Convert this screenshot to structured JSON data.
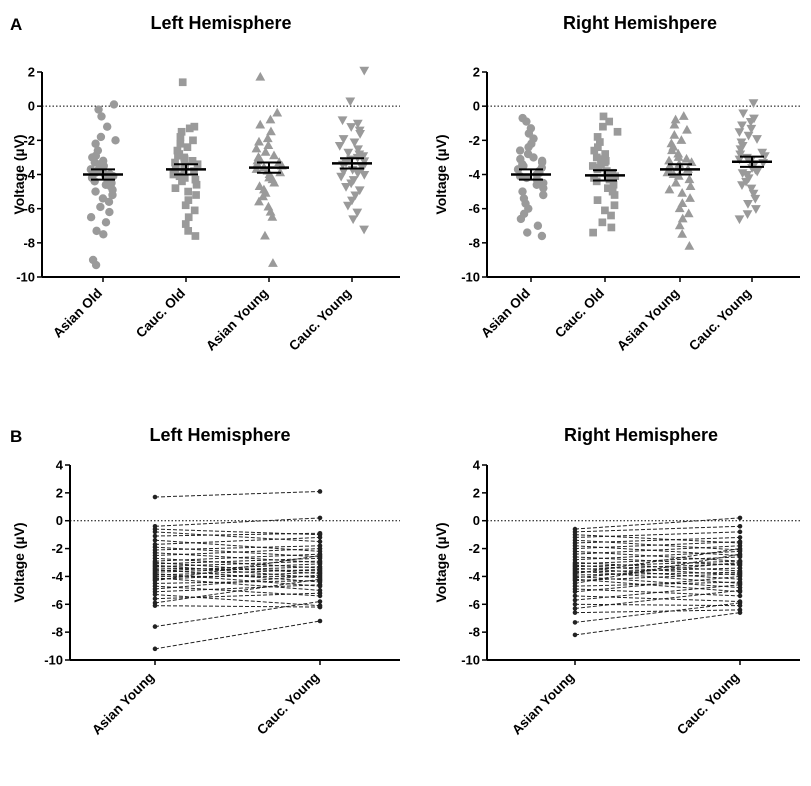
{
  "colors": {
    "axis": "#000000",
    "points": "#9a9a9a",
    "paired": "#222222"
  },
  "panel_labels": [
    "A",
    "B"
  ],
  "chart_data": [
    {
      "type": "scatter",
      "panel": "A",
      "title": "Left Hemisphere",
      "ylabel": "Voltage (µV)",
      "xlabel": "",
      "ylim": [
        -10,
        2
      ],
      "yticks": [
        2,
        0,
        -2,
        -4,
        -6,
        -8,
        -10
      ],
      "reference_line": 0,
      "grid": false,
      "categories": [
        "Asian Old",
        "Cauc. Old",
        "Asian Young",
        "Cauc. Young"
      ],
      "markers": [
        "circle",
        "square",
        "triangle-up",
        "triangle-down"
      ],
      "summary": [
        {
          "mean": -4.0,
          "sem": 0.3
        },
        {
          "mean": -3.7,
          "sem": 0.3
        },
        {
          "mean": -3.6,
          "sem": 0.3
        },
        {
          "mean": -3.35,
          "sem": 0.3
        }
      ],
      "series": [
        {
          "values": [
            0.1,
            -0.2,
            -0.6,
            -1.2,
            -1.8,
            -2.0,
            -2.2,
            -2.6,
            -2.9,
            -3.0,
            -3.2,
            -3.3,
            -3.4,
            -3.5,
            -3.6,
            -3.7,
            -3.7,
            -3.8,
            -3.9,
            -4.0,
            -4.0,
            -4.1,
            -4.1,
            -4.2,
            -4.3,
            -4.4,
            -4.5,
            -4.6,
            -4.7,
            -4.9,
            -5.0,
            -5.2,
            -5.4,
            -5.6,
            -5.9,
            -6.2,
            -6.5,
            -6.8,
            -7.3,
            -7.5,
            -9.0,
            -9.3
          ]
        },
        {
          "values": [
            1.4,
            -1.2,
            -1.3,
            -1.5,
            -1.8,
            -2.0,
            -2.2,
            -2.4,
            -2.6,
            -2.8,
            -2.9,
            -3.0,
            -3.1,
            -3.2,
            -3.3,
            -3.4,
            -3.5,
            -3.6,
            -3.7,
            -3.8,
            -3.9,
            -4.0,
            -4.1,
            -4.2,
            -4.3,
            -4.4,
            -4.6,
            -4.8,
            -5.0,
            -5.2,
            -5.5,
            -5.8,
            -6.1,
            -6.5,
            -6.9,
            -7.3,
            -7.6
          ]
        },
        {
          "values": [
            1.7,
            -0.4,
            -0.8,
            -1.1,
            -1.5,
            -1.9,
            -2.1,
            -2.3,
            -2.5,
            -2.7,
            -2.9,
            -3.0,
            -3.1,
            -3.2,
            -3.3,
            -3.4,
            -3.5,
            -3.6,
            -3.7,
            -3.8,
            -3.9,
            -4.0,
            -4.1,
            -4.2,
            -4.3,
            -4.5,
            -4.7,
            -4.9,
            -5.1,
            -5.3,
            -5.6,
            -5.9,
            -6.2,
            -6.5,
            -7.6,
            -9.2
          ]
        },
        {
          "values": [
            2.1,
            0.3,
            -0.8,
            -1.0,
            -1.2,
            -1.4,
            -1.6,
            -1.9,
            -2.1,
            -2.3,
            -2.5,
            -2.7,
            -2.8,
            -2.9,
            -3.0,
            -3.1,
            -3.2,
            -3.3,
            -3.4,
            -3.5,
            -3.6,
            -3.7,
            -3.8,
            -3.9,
            -4.0,
            -4.1,
            -4.3,
            -4.5,
            -4.7,
            -4.9,
            -5.2,
            -5.5,
            -5.8,
            -6.2,
            -6.6,
            -7.2
          ]
        }
      ]
    },
    {
      "type": "scatter",
      "panel": "A",
      "title": "Right Hemishpere",
      "ylabel": "Voltage (µV)",
      "xlabel": "",
      "ylim": [
        -10,
        2
      ],
      "yticks": [
        2,
        0,
        -2,
        -4,
        -6,
        -8,
        -10
      ],
      "reference_line": 0,
      "grid": false,
      "categories": [
        "Asian Old",
        "Cauc. Old",
        "Asian Young",
        "Cauc. Young"
      ],
      "markers": [
        "circle",
        "square",
        "triangle-up",
        "triangle-down"
      ],
      "summary": [
        {
          "mean": -4.0,
          "sem": 0.3
        },
        {
          "mean": -4.05,
          "sem": 0.3
        },
        {
          "mean": -3.7,
          "sem": 0.3
        },
        {
          "mean": -3.25,
          "sem": 0.3
        }
      ],
      "series": [
        {
          "values": [
            -0.7,
            -0.9,
            -1.3,
            -1.6,
            -1.9,
            -2.2,
            -2.4,
            -2.6,
            -2.8,
            -3.0,
            -3.1,
            -3.2,
            -3.3,
            -3.4,
            -3.5,
            -3.6,
            -3.7,
            -3.8,
            -3.9,
            -4.0,
            -4.1,
            -4.2,
            -4.3,
            -4.4,
            -4.5,
            -4.6,
            -4.8,
            -5.0,
            -5.2,
            -5.4,
            -5.7,
            -6.0,
            -6.3,
            -6.6,
            -7.0,
            -7.4,
            -7.6
          ]
        },
        {
          "values": [
            -0.6,
            -0.9,
            -1.2,
            -1.5,
            -1.8,
            -2.1,
            -2.4,
            -2.6,
            -2.8,
            -3.0,
            -3.1,
            -3.2,
            -3.3,
            -3.4,
            -3.5,
            -3.6,
            -3.7,
            -3.8,
            -3.9,
            -4.0,
            -4.1,
            -4.2,
            -4.3,
            -4.4,
            -4.6,
            -4.8,
            -5.0,
            -5.2,
            -5.5,
            -5.8,
            -6.1,
            -6.4,
            -6.8,
            -7.1,
            -7.4
          ]
        },
        {
          "values": [
            -0.6,
            -0.8,
            -1.1,
            -1.4,
            -1.7,
            -2.0,
            -2.2,
            -2.4,
            -2.6,
            -2.8,
            -3.0,
            -3.1,
            -3.2,
            -3.3,
            -3.4,
            -3.5,
            -3.6,
            -3.7,
            -3.8,
            -3.9,
            -4.0,
            -4.1,
            -4.3,
            -4.5,
            -4.7,
            -4.9,
            -5.1,
            -5.4,
            -5.7,
            -6.0,
            -6.3,
            -6.6,
            -7.0,
            -7.5,
            -8.2
          ]
        },
        {
          "values": [
            0.2,
            -0.4,
            -0.7,
            -0.9,
            -1.1,
            -1.3,
            -1.5,
            -1.7,
            -1.9,
            -2.1,
            -2.3,
            -2.5,
            -2.7,
            -2.8,
            -2.9,
            -3.0,
            -3.1,
            -3.2,
            -3.3,
            -3.4,
            -3.5,
            -3.6,
            -3.7,
            -3.8,
            -3.9,
            -4.0,
            -4.2,
            -4.4,
            -4.6,
            -4.8,
            -5.1,
            -5.4,
            -5.7,
            -6.0,
            -6.3,
            -6.6
          ]
        }
      ]
    },
    {
      "type": "line",
      "panel": "B",
      "title": "Left Hemisphere",
      "ylabel": "Voltage (µV)",
      "xlabel": "",
      "ylim": [
        -10,
        4
      ],
      "yticks": [
        4,
        2,
        0,
        -2,
        -4,
        -6,
        -8,
        -10
      ],
      "reference_line": 0,
      "grid": false,
      "categories": [
        "Asian Young",
        "Cauc. Young"
      ],
      "pairs": [
        [
          1.7,
          2.1
        ],
        [
          -0.4,
          0.2
        ],
        [
          -0.6,
          -1.0
        ],
        [
          -0.8,
          -1.5
        ],
        [
          -1.1,
          -0.9
        ],
        [
          -1.4,
          -2.2
        ],
        [
          -1.7,
          -1.2
        ],
        [
          -1.9,
          -2.6
        ],
        [
          -2.1,
          -1.8
        ],
        [
          -2.3,
          -3.0
        ],
        [
          -2.5,
          -2.0
        ],
        [
          -2.7,
          -3.4
        ],
        [
          -2.9,
          -2.4
        ],
        [
          -3.0,
          -3.8
        ],
        [
          -3.1,
          -2.7
        ],
        [
          -3.2,
          -4.1
        ],
        [
          -3.3,
          -2.9
        ],
        [
          -3.4,
          -3.6
        ],
        [
          -3.5,
          -4.4
        ],
        [
          -3.6,
          -3.1
        ],
        [
          -3.7,
          -3.3
        ],
        [
          -3.8,
          -4.7
        ],
        [
          -3.9,
          -3.5
        ],
        [
          -4.0,
          -4.0
        ],
        [
          -4.1,
          -5.0
        ],
        [
          -4.2,
          -3.7
        ],
        [
          -4.3,
          -2.5
        ],
        [
          -4.5,
          -4.3
        ],
        [
          -4.7,
          -5.4
        ],
        [
          -4.9,
          -3.9
        ],
        [
          -5.1,
          -4.6
        ],
        [
          -5.3,
          -6.1
        ],
        [
          -5.6,
          -5.2
        ],
        [
          -5.9,
          -4.2
        ],
        [
          -6.1,
          -6.2
        ],
        [
          -7.6,
          -5.8
        ],
        [
          -9.2,
          -7.2
        ]
      ]
    },
    {
      "type": "line",
      "panel": "B",
      "title": "Right Hemisphere",
      "ylabel": "Voltage (µV)",
      "xlabel": "",
      "ylim": [
        -10,
        4
      ],
      "yticks": [
        4,
        2,
        0,
        -2,
        -4,
        -6,
        -8,
        -10
      ],
      "reference_line": 0,
      "grid": false,
      "categories": [
        "Asian Young",
        "Cauc. Young"
      ],
      "pairs": [
        [
          -0.6,
          0.2
        ],
        [
          -0.8,
          -0.4
        ],
        [
          -1.0,
          -1.6
        ],
        [
          -1.2,
          -0.8
        ],
        [
          -1.4,
          -2.1
        ],
        [
          -1.6,
          -1.2
        ],
        [
          -1.8,
          -2.5
        ],
        [
          -2.0,
          -1.5
        ],
        [
          -2.2,
          -2.9
        ],
        [
          -2.4,
          -1.8
        ],
        [
          -2.6,
          -3.2
        ],
        [
          -2.8,
          -2.2
        ],
        [
          -3.0,
          -3.6
        ],
        [
          -3.1,
          -2.6
        ],
        [
          -3.2,
          -3.9
        ],
        [
          -3.3,
          -2.9
        ],
        [
          -3.4,
          -4.2
        ],
        [
          -3.5,
          -3.1
        ],
        [
          -3.6,
          -4.5
        ],
        [
          -3.7,
          -3.4
        ],
        [
          -3.8,
          -2.0
        ],
        [
          -3.9,
          -3.7
        ],
        [
          -4.0,
          -4.8
        ],
        [
          -4.1,
          -3.0
        ],
        [
          -4.2,
          -5.1
        ],
        [
          -4.3,
          -3.8
        ],
        [
          -4.5,
          -2.4
        ],
        [
          -4.7,
          -4.4
        ],
        [
          -4.9,
          -5.4
        ],
        [
          -5.1,
          -4.0
        ],
        [
          -5.4,
          -5.8
        ],
        [
          -5.7,
          -4.6
        ],
        [
          -6.0,
          -6.1
        ],
        [
          -6.3,
          -5.0
        ],
        [
          -6.6,
          -6.4
        ],
        [
          -7.3,
          -5.9
        ],
        [
          -8.2,
          -6.6
        ]
      ]
    }
  ]
}
